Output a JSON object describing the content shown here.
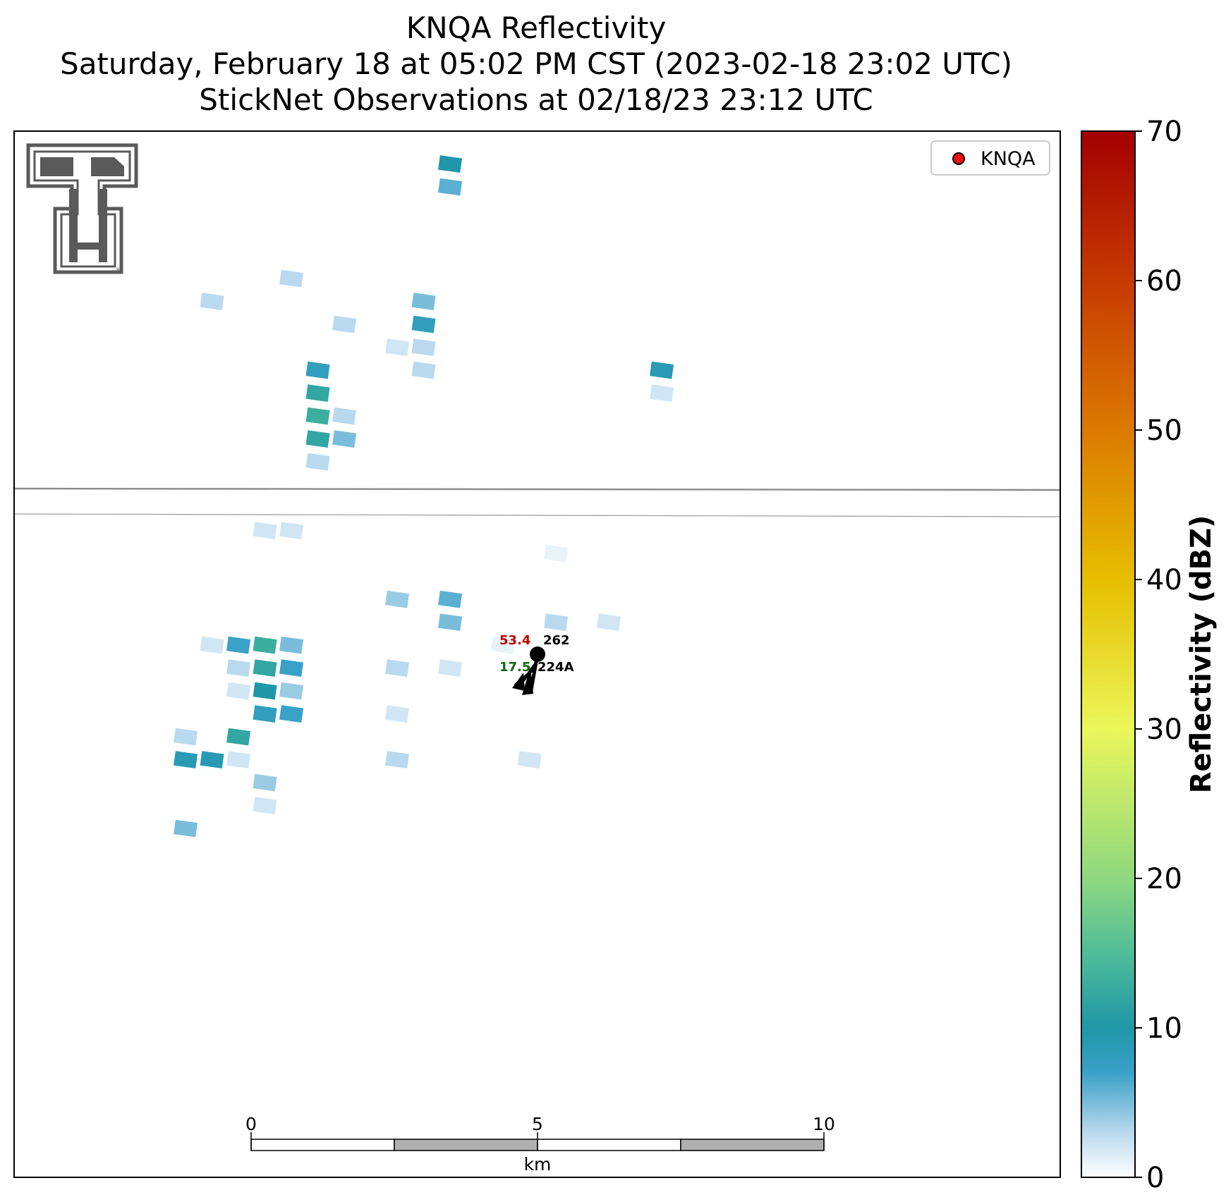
{
  "title": {
    "line1": "KNQA Reflectivity",
    "line2": "Saturday, February 18 at 05:02 PM CST (2023-02-18 23:02 UTC)",
    "line3": "StickNet Observations at 02/18/23 23:12 UTC"
  },
  "legend": {
    "label": "KNQA",
    "marker_color": "#ee1111"
  },
  "colorbar": {
    "label": "Reflectivity (dBZ)",
    "min": 0,
    "max": 70,
    "ticks": [
      0,
      10,
      20,
      30,
      40,
      50,
      60,
      70
    ],
    "stops": [
      {
        "v": 0,
        "c": "#ffffff"
      },
      {
        "v": 3,
        "c": "#b9d9ee"
      },
      {
        "v": 7,
        "c": "#3aa1c8"
      },
      {
        "v": 10,
        "c": "#1f97a8"
      },
      {
        "v": 15,
        "c": "#4fbd98"
      },
      {
        "v": 20,
        "c": "#8fd87f"
      },
      {
        "v": 30,
        "c": "#eaf75a"
      },
      {
        "v": 40,
        "c": "#e6be00"
      },
      {
        "v": 50,
        "c": "#db7a00"
      },
      {
        "v": 60,
        "c": "#c63a00"
      },
      {
        "v": 70,
        "c": "#a30000"
      }
    ]
  },
  "scale_bar": {
    "ticks": [
      "0",
      "5",
      "10"
    ],
    "unit": "km"
  },
  "station": {
    "id": "224A",
    "direction": "262",
    "temperature": "53.4",
    "dewpoint": "17.5"
  },
  "colors": {
    "temperature": "#bb0000",
    "dewpoint": "#116611",
    "road": "#8a8a8a",
    "logo": "#5a5a5a"
  },
  "reflectivity_gates": [
    {
      "r": 1,
      "c": 16,
      "v": 10
    },
    {
      "r": 2,
      "c": 16,
      "v": 6
    },
    {
      "r": 7,
      "c": 7,
      "v": 3
    },
    {
      "r": 6,
      "c": 10,
      "v": 3
    },
    {
      "r": 8,
      "c": 12,
      "v": 3
    },
    {
      "r": 7,
      "c": 15,
      "v": 5
    },
    {
      "r": 8,
      "c": 15,
      "v": 8
    },
    {
      "r": 9,
      "c": 14,
      "v": 2
    },
    {
      "r": 9,
      "c": 15,
      "v": 3
    },
    {
      "r": 10,
      "c": 15,
      "v": 3
    },
    {
      "r": 10,
      "c": 11,
      "v": 8
    },
    {
      "r": 11,
      "c": 11,
      "v": 12
    },
    {
      "r": 12,
      "c": 11,
      "v": 13
    },
    {
      "r": 13,
      "c": 11,
      "v": 12
    },
    {
      "r": 12,
      "c": 12,
      "v": 3
    },
    {
      "r": 13,
      "c": 12,
      "v": 5
    },
    {
      "r": 14,
      "c": 11,
      "v": 3
    },
    {
      "r": 10,
      "c": 24,
      "v": 9
    },
    {
      "r": 11,
      "c": 24,
      "v": 2
    },
    {
      "r": 17,
      "c": 9,
      "v": 2
    },
    {
      "r": 17,
      "c": 10,
      "v": 2
    },
    {
      "r": 18,
      "c": 20,
      "v": 1
    },
    {
      "r": 20,
      "c": 14,
      "v": 4
    },
    {
      "r": 20,
      "c": 16,
      "v": 6
    },
    {
      "r": 21,
      "c": 16,
      "v": 5
    },
    {
      "r": 21,
      "c": 20,
      "v": 3
    },
    {
      "r": 21,
      "c": 22,
      "v": 2
    },
    {
      "r": 22,
      "c": 7,
      "v": 2
    },
    {
      "r": 22,
      "c": 8,
      "v": 7
    },
    {
      "r": 22,
      "c": 9,
      "v": 13
    },
    {
      "r": 22,
      "c": 10,
      "v": 5
    },
    {
      "r": 22,
      "c": 18,
      "v": 1
    },
    {
      "r": 23,
      "c": 8,
      "v": 3
    },
    {
      "r": 23,
      "c": 9,
      "v": 12
    },
    {
      "r": 23,
      "c": 10,
      "v": 7
    },
    {
      "r": 23,
      "c": 14,
      "v": 3
    },
    {
      "r": 23,
      "c": 16,
      "v": 2
    },
    {
      "r": 24,
      "c": 8,
      "v": 2
    },
    {
      "r": 24,
      "c": 9,
      "v": 10
    },
    {
      "r": 24,
      "c": 10,
      "v": 4
    },
    {
      "r": 25,
      "c": 9,
      "v": 8
    },
    {
      "r": 25,
      "c": 10,
      "v": 7
    },
    {
      "r": 25,
      "c": 14,
      "v": 2
    },
    {
      "r": 26,
      "c": 6,
      "v": 3
    },
    {
      "r": 26,
      "c": 8,
      "v": 12
    },
    {
      "r": 27,
      "c": 6,
      "v": 9
    },
    {
      "r": 27,
      "c": 7,
      "v": 9
    },
    {
      "r": 27,
      "c": 8,
      "v": 2
    },
    {
      "r": 27,
      "c": 14,
      "v": 3
    },
    {
      "r": 27,
      "c": 19,
      "v": 2
    },
    {
      "r": 28,
      "c": 9,
      "v": 4
    },
    {
      "r": 29,
      "c": 9,
      "v": 2
    },
    {
      "r": 30,
      "c": 6,
      "v": 5
    }
  ]
}
